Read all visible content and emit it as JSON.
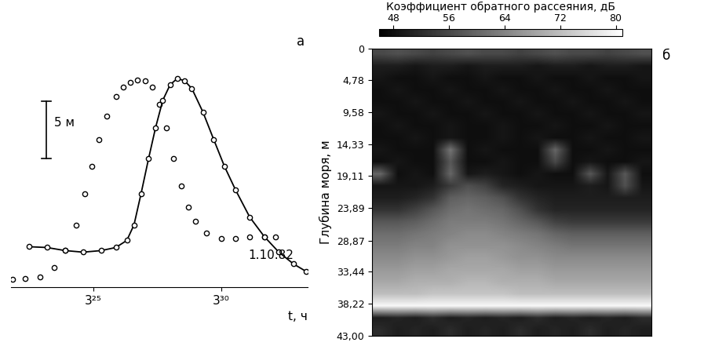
{
  "chart_data": [
    {
      "type": "line",
      "label": "а",
      "annotation": "1.10.82",
      "x_label": "t, ч",
      "xlim": [
        3.3627,
        3.5567
      ],
      "xticks": [
        {
          "value": 3.4167,
          "label": "3²⁵"
        },
        {
          "value": 3.5,
          "label": "3³⁰"
        }
      ],
      "ylim": [
        0,
        21
      ],
      "tick_labels": "x",
      "scale_bar": {
        "length": 5,
        "label": "5 м"
      },
      "series": [
        {
          "color": "#000000",
          "marker": "o",
          "line_style": "none",
          "x": [
            3.3637,
            3.3722,
            3.3817,
            3.391,
            3.3982,
            3.4053,
            3.411,
            3.4157,
            3.4205,
            3.4252,
            3.4313,
            3.436,
            3.4408,
            3.4455,
            3.4503,
            3.455,
            3.4597,
            3.4645,
            3.4692,
            3.474,
            3.4787,
            3.4833,
            3.4905,
            3.5,
            3.5095,
            3.5188,
            3.5283,
            3.5355
          ],
          "values": [
            0.68,
            0.75,
            0.89,
            1.71,
            3.22,
            5.48,
            8.22,
            10.62,
            13.01,
            15.07,
            16.78,
            17.6,
            18.01,
            18.22,
            18.15,
            17.6,
            16.1,
            14.04,
            11.3,
            8.9,
            7.05,
            5.82,
            4.79,
            4.25,
            4.25,
            4.45,
            4.45,
            4.45
          ]
        },
        {
          "color": "#000000",
          "marker": "o",
          "line_style": "solid",
          "x": [
            3.3745,
            3.3863,
            3.3982,
            3.41,
            3.4218,
            3.4313,
            3.4385,
            3.4432,
            3.4478,
            3.4527,
            3.4573,
            3.462,
            3.4668,
            3.4715,
            3.4763,
            3.481,
            3.4882,
            3.4952,
            3.5023,
            3.5095,
            3.5188,
            3.5283,
            3.5378,
            3.5473,
            3.5558
          ],
          "values": [
            3.56,
            3.49,
            3.22,
            3.08,
            3.22,
            3.49,
            4.11,
            5.48,
            8.22,
            11.3,
            14.04,
            16.44,
            17.81,
            18.36,
            18.15,
            17.47,
            15.41,
            13.01,
            10.62,
            8.56,
            6.16,
            4.45,
            3.08,
            2.05,
            1.37
          ]
        }
      ]
    },
    {
      "type": "heatmap",
      "label": "б",
      "y_label": "Глубина моря, м",
      "ylim": [
        43.0,
        0
      ],
      "tick_labels": "y",
      "yticks": [
        0,
        {
          "value": 4.78,
          "label": "4,78"
        },
        {
          "value": 9.58,
          "label": "9,58"
        },
        {
          "value": 14.33,
          "label": "14,33"
        },
        {
          "value": 19.11,
          "label": "19,11"
        },
        {
          "value": 23.89,
          "label": "23,89"
        },
        {
          "value": 28.87,
          "label": "28,87"
        },
        {
          "value": 33.44,
          "label": "33,44"
        },
        {
          "value": 38.22,
          "label": "38,22"
        },
        {
          "value": 43.0,
          "label": "43,00"
        }
      ],
      "colorbar": {
        "title": "Коэффициент обратного рассеяния, дБ",
        "range": [
          46,
          81
        ],
        "ticks": [
          48,
          56,
          64,
          72,
          80
        ]
      },
      "cells": [
        [
          56,
          57,
          56,
          55,
          56,
          57,
          56,
          56,
          55,
          56,
          57,
          56,
          56,
          55,
          56,
          57
        ],
        [
          50,
          50,
          49,
          50,
          50,
          49,
          50,
          50,
          50,
          49,
          50,
          50,
          49,
          50,
          50,
          49
        ],
        [
          49,
          48,
          48,
          49,
          48,
          48,
          49,
          48,
          48,
          49,
          48,
          48,
          49,
          48,
          48,
          49
        ],
        [
          48,
          49,
          48,
          48,
          49,
          48,
          48,
          49,
          48,
          48,
          49,
          48,
          48,
          49,
          48,
          48
        ],
        [
          48,
          48,
          49,
          48,
          48,
          49,
          48,
          48,
          49,
          48,
          48,
          49,
          48,
          48,
          49,
          48
        ],
        [
          49,
          48,
          48,
          49,
          48,
          48,
          49,
          48,
          48,
          49,
          48,
          48,
          49,
          48,
          48,
          49
        ],
        [
          48,
          49,
          48,
          48,
          49,
          48,
          48,
          49,
          48,
          48,
          49,
          48,
          48,
          49,
          48,
          48
        ],
        [
          48,
          48,
          49,
          48,
          49,
          48,
          48,
          49,
          48,
          49,
          48,
          48,
          49,
          48,
          48,
          49
        ],
        [
          49,
          48,
          48,
          48,
          62,
          48,
          49,
          48,
          48,
          48,
          60,
          48,
          48,
          49,
          48,
          48
        ],
        [
          48,
          49,
          48,
          48,
          58,
          48,
          48,
          49,
          48,
          48,
          56,
          48,
          49,
          48,
          48,
          49
        ],
        [
          60,
          48,
          49,
          48,
          60,
          49,
          50,
          49,
          48,
          49,
          48,
          48,
          58,
          49,
          58,
          48
        ],
        [
          49,
          49,
          49,
          50,
          54,
          57,
          55,
          51,
          50,
          49,
          49,
          49,
          50,
          49,
          57,
          49
        ],
        [
          50,
          50,
          51,
          53,
          59,
          60,
          59,
          57,
          53,
          51,
          50,
          50,
          50,
          50,
          50,
          50
        ],
        [
          53,
          53,
          55,
          58,
          61,
          62,
          61,
          60,
          57,
          53,
          51,
          51,
          51,
          51,
          51,
          51
        ],
        [
          58,
          58,
          59,
          61,
          63,
          63,
          63,
          62,
          60,
          58,
          55,
          54,
          54,
          54,
          54,
          54
        ],
        [
          61,
          61,
          62,
          63,
          64,
          65,
          65,
          64,
          63,
          62,
          60,
          59,
          59,
          59,
          59,
          59
        ],
        [
          63,
          63,
          64,
          64,
          66,
          66,
          66,
          66,
          65,
          64,
          63,
          62,
          62,
          62,
          62,
          62
        ],
        [
          65,
          65,
          66,
          66,
          67,
          68,
          68,
          67,
          66,
          66,
          65,
          65,
          65,
          65,
          65,
          65
        ],
        [
          67,
          67,
          68,
          68,
          69,
          69,
          69,
          69,
          68,
          68,
          67,
          67,
          67,
          67,
          67,
          67
        ],
        [
          69,
          69,
          70,
          70,
          70,
          71,
          71,
          70,
          70,
          70,
          69,
          69,
          69,
          69,
          69,
          69
        ],
        [
          72,
          72,
          72,
          73,
          73,
          73,
          73,
          73,
          72,
          72,
          72,
          72,
          72,
          72,
          72,
          72
        ],
        [
          80,
          80,
          80,
          80,
          80,
          80,
          80,
          80,
          80,
          80,
          80,
          80,
          80,
          80,
          80,
          80
        ],
        [
          50,
          51,
          50,
          52,
          50,
          51,
          50,
          51,
          50,
          52,
          50,
          51,
          50,
          51,
          50,
          52
        ],
        [
          52,
          50,
          51,
          50,
          52,
          50,
          51,
          50,
          52,
          50,
          51,
          50,
          52,
          50,
          51,
          50
        ]
      ]
    }
  ]
}
